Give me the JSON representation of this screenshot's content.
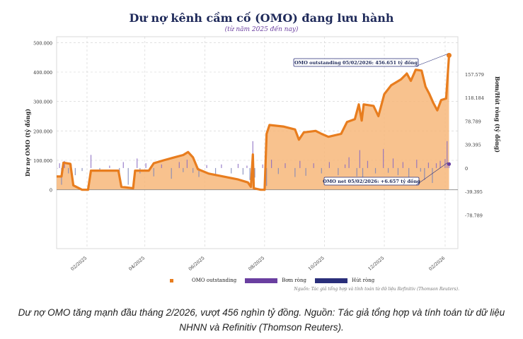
{
  "title": "Dư nợ kênh cầm cố (OMO) đang lưu hành",
  "subtitle": "(từ năm 2025 đến nay)",
  "caption": "Dư nợ OMO tăng mạnh đầu tháng 2/2026, vượt 456 nghìn tỷ đồng. Nguồn: Tác giả tổng hợp và tính toán từ dữ liệu NHNN và Refinitiv (Thomson Reuters).",
  "source_note": "Nguồn: Tác giả tổng hợp và tính toán từ dữ liệu Refinitiv (Thomson Reuters).",
  "colors": {
    "area": "#f7b77a",
    "line": "#e87d1e",
    "bom": "#6a3fa0",
    "hut": "#2a2f7a",
    "grid": "#cfcfcf"
  },
  "chart_data": {
    "type": "line",
    "ylabel": "Dư nợ OMO (tỷ đồng)",
    "y2label": "Bơm/Hút ròng (tỷ đồng)",
    "ylim": [
      -200000,
      520000
    ],
    "y2lim": [
      -135000,
      220000
    ],
    "y_ticks": [
      0,
      100000,
      200000,
      300000,
      400000,
      500000
    ],
    "y_tick_labels": [
      "0",
      "100.000",
      "200.000",
      "300.000",
      "400.000",
      "500.000"
    ],
    "y2_ticks": [
      -78789,
      -39395,
      0,
      39395,
      78789,
      118184,
      157579
    ],
    "y2_tick_labels": [
      "-78.789",
      "-39.395",
      "0",
      "39.395",
      "78.789",
      "118.184",
      "157.579"
    ],
    "x_ticks": [
      "2025-02-01",
      "2025-04-01",
      "2025-06-01",
      "2025-08-01",
      "2025-10-01",
      "2025-12-01",
      "2026-02-01"
    ],
    "x_tick_labels": [
      "02/2025",
      "04/2025",
      "06/2025",
      "08/2025",
      "10/2025",
      "12/2025",
      "02/2026"
    ],
    "xlim": [
      "2025-01-01",
      "2026-02-14"
    ],
    "grid": true,
    "legend_position": "bottom",
    "series": [
      {
        "name": "OMO outstanding",
        "points": [
          [
            "2025-01-01",
            45000
          ],
          [
            "2025-01-06",
            45000
          ],
          [
            "2025-01-08",
            92000
          ],
          [
            "2025-01-15",
            88000
          ],
          [
            "2025-01-18",
            15000
          ],
          [
            "2025-01-27",
            0
          ],
          [
            "2025-02-02",
            0
          ],
          [
            "2025-02-05",
            65000
          ],
          [
            "2025-02-18",
            65000
          ],
          [
            "2025-03-05",
            65000
          ],
          [
            "2025-03-08",
            10000
          ],
          [
            "2025-03-20",
            5000
          ],
          [
            "2025-03-22",
            65000
          ],
          [
            "2025-04-05",
            65000
          ],
          [
            "2025-04-10",
            90000
          ],
          [
            "2025-04-20",
            100000
          ],
          [
            "2025-05-01",
            110000
          ],
          [
            "2025-05-10",
            118000
          ],
          [
            "2025-05-15",
            128000
          ],
          [
            "2025-05-20",
            110000
          ],
          [
            "2025-05-25",
            70000
          ],
          [
            "2025-06-05",
            55000
          ],
          [
            "2025-06-20",
            45000
          ],
          [
            "2025-07-05",
            35000
          ],
          [
            "2025-07-15",
            25000
          ],
          [
            "2025-07-18",
            10000
          ],
          [
            "2025-07-20",
            120000
          ],
          [
            "2025-07-21",
            5000
          ],
          [
            "2025-07-28",
            0
          ],
          [
            "2025-08-01",
            0
          ],
          [
            "2025-08-03",
            190000
          ],
          [
            "2025-08-06",
            220000
          ],
          [
            "2025-08-20",
            215000
          ],
          [
            "2025-09-01",
            205000
          ],
          [
            "2025-09-05",
            170000
          ],
          [
            "2025-09-10",
            195000
          ],
          [
            "2025-09-22",
            200000
          ],
          [
            "2025-09-28",
            190000
          ],
          [
            "2025-10-05",
            180000
          ],
          [
            "2025-10-18",
            190000
          ],
          [
            "2025-10-24",
            230000
          ],
          [
            "2025-11-01",
            240000
          ],
          [
            "2025-11-05",
            290000
          ],
          [
            "2025-11-08",
            235000
          ],
          [
            "2025-11-10",
            290000
          ],
          [
            "2025-11-20",
            285000
          ],
          [
            "2025-11-25",
            250000
          ],
          [
            "2025-12-01",
            325000
          ],
          [
            "2025-12-08",
            355000
          ],
          [
            "2025-12-18",
            375000
          ],
          [
            "2025-12-24",
            395000
          ],
          [
            "2025-12-28",
            370000
          ],
          [
            "2026-01-02",
            408000
          ],
          [
            "2026-01-08",
            405000
          ],
          [
            "2026-01-12",
            350000
          ],
          [
            "2026-01-16",
            325000
          ],
          [
            "2026-01-20",
            295000
          ],
          [
            "2026-01-24",
            270000
          ],
          [
            "2026-01-28",
            305000
          ],
          [
            "2026-02-02",
            310000
          ],
          [
            "2026-02-05",
            456651
          ]
        ]
      },
      {
        "name": "Bơm ròng",
        "values": []
      },
      {
        "name": "Hút ròng",
        "values": []
      }
    ],
    "net_flows": [
      [
        "2025-01-02",
        0
      ],
      [
        "2025-01-04",
        8000
      ],
      [
        "2025-01-06",
        -28000
      ],
      [
        "2025-01-09",
        12000
      ],
      [
        "2025-01-13",
        -9000
      ],
      [
        "2025-01-16",
        6000
      ],
      [
        "2025-01-20",
        -12000
      ],
      [
        "2025-01-27",
        -5000
      ],
      [
        "2025-02-05",
        22000
      ],
      [
        "2025-02-14",
        -6000
      ],
      [
        "2025-02-24",
        4000
      ],
      [
        "2025-03-06",
        -20000
      ],
      [
        "2025-03-10",
        10000
      ],
      [
        "2025-03-15",
        -28000
      ],
      [
        "2025-03-24",
        16000
      ],
      [
        "2025-03-27",
        -9000
      ],
      [
        "2025-04-02",
        8000
      ],
      [
        "2025-04-10",
        -14000
      ],
      [
        "2025-04-18",
        6000
      ],
      [
        "2025-04-28",
        -18000
      ],
      [
        "2025-05-06",
        10000
      ],
      [
        "2025-05-10",
        -7000
      ],
      [
        "2025-05-14",
        14000
      ],
      [
        "2025-05-20",
        -8000
      ],
      [
        "2025-05-26",
        -15000
      ],
      [
        "2025-06-03",
        5000
      ],
      [
        "2025-06-12",
        -10000
      ],
      [
        "2025-06-18",
        6000
      ],
      [
        "2025-06-28",
        -9000
      ],
      [
        "2025-07-05",
        7000
      ],
      [
        "2025-07-10",
        -11000
      ],
      [
        "2025-07-14",
        4000
      ],
      [
        "2025-07-17",
        -20000
      ],
      [
        "2025-07-20",
        45000
      ],
      [
        "2025-07-22",
        -16000
      ],
      [
        "2025-07-30",
        6000
      ],
      [
        "2025-08-03",
        -30000
      ],
      [
        "2025-08-08",
        14000
      ],
      [
        "2025-08-15",
        -10000
      ],
      [
        "2025-08-22",
        8000
      ],
      [
        "2025-09-01",
        -15000
      ],
      [
        "2025-09-06",
        12000
      ],
      [
        "2025-09-12",
        -13000
      ],
      [
        "2025-09-20",
        8000
      ],
      [
        "2025-09-28",
        -9000
      ],
      [
        "2025-10-06",
        10000
      ],
      [
        "2025-10-15",
        -12000
      ],
      [
        "2025-10-22",
        6000
      ],
      [
        "2025-10-26",
        18000
      ],
      [
        "2025-11-03",
        -14000
      ],
      [
        "2025-11-06",
        30000
      ],
      [
        "2025-11-09",
        -26000
      ],
      [
        "2025-11-14",
        12000
      ],
      [
        "2025-11-22",
        -9000
      ],
      [
        "2025-11-30",
        32000
      ],
      [
        "2025-12-05",
        -8000
      ],
      [
        "2025-12-10",
        16000
      ],
      [
        "2025-12-15",
        -12000
      ],
      [
        "2025-12-20",
        10000
      ],
      [
        "2025-12-26",
        -18000
      ],
      [
        "2026-01-03",
        14000
      ],
      [
        "2026-01-07",
        -6000
      ],
      [
        "2026-01-11",
        -20000
      ],
      [
        "2026-01-15",
        9000
      ],
      [
        "2026-01-19",
        -25000
      ],
      [
        "2026-01-23",
        8000
      ],
      [
        "2026-01-27",
        12000
      ],
      [
        "2026-02-01",
        15000
      ],
      [
        "2026-02-03",
        45000
      ],
      [
        "2026-02-05",
        6657
      ]
    ],
    "annotations": [
      {
        "text": "OMO outstanding 05/02/2026: 456.651 tỷ đồng",
        "x": "2026-02-05",
        "y": 456651
      },
      {
        "text": "OMO net 05/02/2026: +6.657 tỷ đồng",
        "x": "2026-02-05",
        "y": 6657
      }
    ],
    "legend": [
      "OMO outstanding",
      "Bơm ròng",
      "Hút ròng"
    ]
  }
}
